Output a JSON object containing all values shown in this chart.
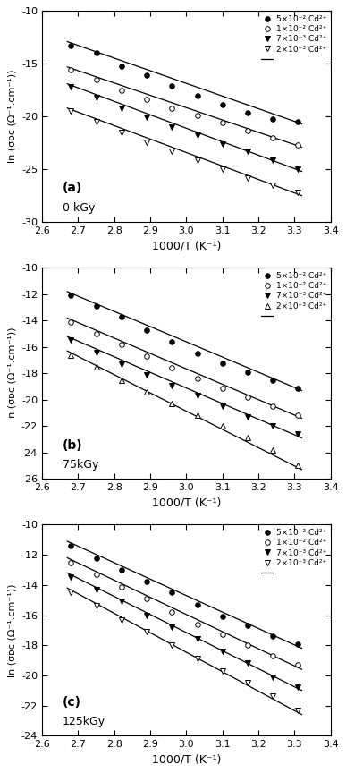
{
  "xlim": [
    2.6,
    3.4
  ],
  "xticks": [
    2.6,
    2.7,
    2.8,
    2.9,
    3.0,
    3.1,
    3.2,
    3.3,
    3.4
  ],
  "xlabel": "1000/T (K⁻¹)",
  "ylabel": "ln (σᴅᴄ (Ω⁻¹.cm⁻¹))",
  "panels": [
    {
      "label": "(a)",
      "dose": "0 kGy",
      "ylim": [
        -30,
        -10
      ],
      "yticks": [
        -30,
        -25,
        -20,
        -15,
        -10
      ],
      "series": [
        {
          "name": "5×10⁻² Cd²⁺",
          "marker": "o",
          "filled": true,
          "x": [
            2.68,
            2.75,
            2.82,
            2.89,
            2.96,
            3.03,
            3.1,
            3.17,
            3.24,
            3.31
          ],
          "y": [
            -13.3,
            -14.0,
            -15.2,
            -16.1,
            -17.1,
            -18.0,
            -18.9,
            -19.6,
            -20.2,
            -20.5
          ],
          "fit_x": [
            2.67,
            3.32
          ],
          "fit_y": [
            -12.9,
            -20.7
          ]
        },
        {
          "name": "1×10⁻² Cd²⁺",
          "marker": "o",
          "filled": false,
          "x": [
            2.68,
            2.75,
            2.82,
            2.89,
            2.96,
            3.03,
            3.1,
            3.17,
            3.24,
            3.31
          ],
          "y": [
            -15.6,
            -16.5,
            -17.5,
            -18.4,
            -19.2,
            -19.9,
            -20.6,
            -21.3,
            -22.0,
            -22.7
          ],
          "fit_x": [
            2.67,
            3.32
          ],
          "fit_y": [
            -15.3,
            -22.9
          ]
        },
        {
          "name": "7×10⁻³ Cd²⁺",
          "marker": "v",
          "filled": true,
          "x": [
            2.68,
            2.75,
            2.82,
            2.89,
            2.96,
            3.03,
            3.1,
            3.17,
            3.24,
            3.31
          ],
          "y": [
            -17.2,
            -18.2,
            -19.2,
            -20.1,
            -21.0,
            -21.8,
            -22.6,
            -23.3,
            -24.1,
            -25.0
          ],
          "fit_x": [
            2.67,
            3.32
          ],
          "fit_y": [
            -16.9,
            -25.2
          ]
        },
        {
          "name": "2×10⁻³ Cd²⁺",
          "marker": "v",
          "filled": false,
          "x": [
            2.68,
            2.75,
            2.82,
            2.89,
            2.96,
            3.03,
            3.1,
            3.17,
            3.24,
            3.31
          ],
          "y": [
            -19.5,
            -20.5,
            -21.5,
            -22.4,
            -23.3,
            -24.1,
            -25.0,
            -25.8,
            -26.5,
            -27.2
          ],
          "fit_x": [
            2.67,
            3.32
          ],
          "fit_y": [
            -19.2,
            -27.5
          ]
        }
      ]
    },
    {
      "label": "(b)",
      "dose": "75kGy",
      "ylim": [
        -26,
        -10
      ],
      "yticks": [
        -26,
        -24,
        -22,
        -20,
        -18,
        -16,
        -14,
        -12,
        -10
      ],
      "series": [
        {
          "name": "5×10⁻² Cd²⁺",
          "marker": "o",
          "filled": true,
          "x": [
            2.68,
            2.75,
            2.82,
            2.89,
            2.96,
            3.03,
            3.1,
            3.17,
            3.24,
            3.31
          ],
          "y": [
            -12.1,
            -12.9,
            -13.7,
            -14.7,
            -15.6,
            -16.5,
            -17.2,
            -17.9,
            -18.5,
            -19.1
          ],
          "fit_x": [
            2.67,
            3.32
          ],
          "fit_y": [
            -11.8,
            -19.3
          ]
        },
        {
          "name": "1×10⁻² Cd²⁺",
          "marker": "o",
          "filled": false,
          "x": [
            2.68,
            2.75,
            2.82,
            2.89,
            2.96,
            3.03,
            3.1,
            3.17,
            3.24,
            3.31
          ],
          "y": [
            -14.1,
            -15.0,
            -15.8,
            -16.7,
            -17.6,
            -18.4,
            -19.1,
            -19.8,
            -20.5,
            -21.2
          ],
          "fit_x": [
            2.67,
            3.32
          ],
          "fit_y": [
            -13.8,
            -21.4
          ]
        },
        {
          "name": "7×10⁻³ Cd²⁺",
          "marker": "v",
          "filled": true,
          "x": [
            2.68,
            2.75,
            2.82,
            2.89,
            2.96,
            3.03,
            3.1,
            3.17,
            3.24,
            3.31
          ],
          "y": [
            -15.5,
            -16.4,
            -17.3,
            -18.1,
            -18.9,
            -19.7,
            -20.5,
            -21.3,
            -22.0,
            -22.6
          ],
          "fit_x": [
            2.67,
            3.32
          ],
          "fit_y": [
            -15.2,
            -22.9
          ]
        },
        {
          "name": "2×10⁻³ Cd²⁺",
          "marker": "^",
          "filled": false,
          "x": [
            2.68,
            2.75,
            2.82,
            2.89,
            2.96,
            3.03,
            3.1,
            3.17,
            3.24,
            3.31
          ],
          "y": [
            -16.6,
            -17.5,
            -18.5,
            -19.4,
            -20.3,
            -21.2,
            -22.0,
            -22.9,
            -23.8,
            -25.0
          ],
          "fit_x": [
            2.67,
            3.32
          ],
          "fit_y": [
            -16.3,
            -25.3
          ]
        }
      ]
    },
    {
      "label": "(c)",
      "dose": "125kGy",
      "ylim": [
        -24,
        -10
      ],
      "yticks": [
        -24,
        -22,
        -20,
        -18,
        -16,
        -14,
        -12,
        -10
      ],
      "series": [
        {
          "name": "5×10⁻² Cd²⁺",
          "marker": "o",
          "filled": true,
          "x": [
            2.68,
            2.75,
            2.82,
            2.89,
            2.96,
            3.03,
            3.1,
            3.17,
            3.24,
            3.31
          ],
          "y": [
            -11.4,
            -12.2,
            -13.0,
            -13.8,
            -14.5,
            -15.3,
            -16.1,
            -16.7,
            -17.4,
            -17.9
          ],
          "fit_x": [
            2.67,
            3.32
          ],
          "fit_y": [
            -11.1,
            -18.2
          ]
        },
        {
          "name": "1×10⁻² Cd²⁺",
          "marker": "o",
          "filled": false,
          "x": [
            2.68,
            2.75,
            2.82,
            2.89,
            2.96,
            3.03,
            3.1,
            3.17,
            3.24,
            3.31
          ],
          "y": [
            -12.5,
            -13.3,
            -14.1,
            -14.9,
            -15.8,
            -16.6,
            -17.3,
            -18.0,
            -18.7,
            -19.3
          ],
          "fit_x": [
            2.67,
            3.32
          ],
          "fit_y": [
            -12.2,
            -19.6
          ]
        },
        {
          "name": "7×10⁻³ Cd²⁺",
          "marker": "v",
          "filled": true,
          "x": [
            2.68,
            2.75,
            2.82,
            2.89,
            2.96,
            3.03,
            3.1,
            3.17,
            3.24,
            3.31
          ],
          "y": [
            -13.5,
            -14.3,
            -15.1,
            -16.0,
            -16.8,
            -17.6,
            -18.4,
            -19.2,
            -20.1,
            -20.8
          ],
          "fit_x": [
            2.67,
            3.32
          ],
          "fit_y": [
            -13.2,
            -21.0
          ]
        },
        {
          "name": "2×10⁻³ Cd²⁺",
          "marker": "v",
          "filled": false,
          "x": [
            2.68,
            2.75,
            2.82,
            2.89,
            2.96,
            3.03,
            3.1,
            3.17,
            3.24,
            3.31
          ],
          "y": [
            -14.5,
            -15.4,
            -16.3,
            -17.1,
            -18.0,
            -18.9,
            -19.7,
            -20.5,
            -21.4,
            -22.3
          ],
          "fit_x": [
            2.67,
            3.32
          ],
          "fit_y": [
            -14.2,
            -22.6
          ]
        }
      ]
    }
  ]
}
